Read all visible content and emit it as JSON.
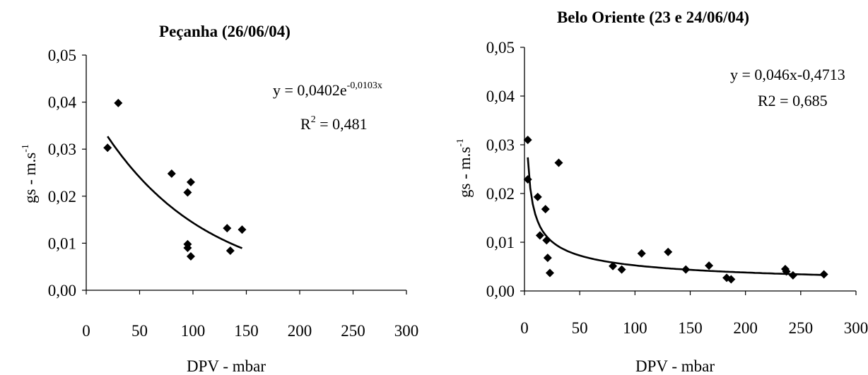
{
  "chart_data": [
    {
      "type": "scatter",
      "title": "Peçanha  (26/06/04)",
      "xlabel": "DPV -  mbar",
      "ylabel_main": "gs -  m.s",
      "ylabel_sup": "-1",
      "xlim": [
        0,
        300
      ],
      "ylim": [
        0,
        0.05
      ],
      "x_ticks": [
        "0",
        "50",
        "100",
        "150",
        "200",
        "250",
        "300"
      ],
      "y_ticks": [
        "0,00",
        "0,01",
        "0,02",
        "0,03",
        "0,04",
        "0,05"
      ],
      "equation_main": "y = 0,0402e",
      "equation_sup": "-0,0103x",
      "r2_main": "R",
      "r2_sup": "2",
      "r2_value": " = 0,481",
      "points": [
        {
          "x": 20,
          "y": 0.0303
        },
        {
          "x": 30,
          "y": 0.0398
        },
        {
          "x": 80,
          "y": 0.0248
        },
        {
          "x": 95,
          "y": 0.0208
        },
        {
          "x": 98,
          "y": 0.023
        },
        {
          "x": 95,
          "y": 0.0098
        },
        {
          "x": 95,
          "y": 0.009
        },
        {
          "x": 98,
          "y": 0.0072
        },
        {
          "x": 132,
          "y": 0.0132
        },
        {
          "x": 135,
          "y": 0.0084
        },
        {
          "x": 146,
          "y": 0.0129
        }
      ],
      "trend": {
        "type": "exponential",
        "a": 0.0402,
        "b": -0.0103,
        "x_from": 20,
        "x_to": 146
      }
    },
    {
      "type": "scatter",
      "title": "Belo Oriente (23 e 24/06/04)",
      "xlabel": "DPV -  mbar",
      "ylabel_main": "gs -  m.s",
      "ylabel_sup": "-1",
      "xlim": [
        0,
        300
      ],
      "ylim": [
        0,
        0.05
      ],
      "x_ticks": [
        "0",
        "50",
        "100",
        "150",
        "200",
        "250",
        "300"
      ],
      "y_ticks": [
        "0,00",
        "0,01",
        "0,02",
        "0,03",
        "0,04",
        "0,05"
      ],
      "equation_main": "y = 0,046x-0,4713",
      "r2_text": "R2 = 0,685",
      "points": [
        {
          "x": 3,
          "y": 0.031
        },
        {
          "x": 3,
          "y": 0.0229
        },
        {
          "x": 12,
          "y": 0.0193
        },
        {
          "x": 14,
          "y": 0.0114
        },
        {
          "x": 19,
          "y": 0.0168
        },
        {
          "x": 20,
          "y": 0.0104
        },
        {
          "x": 21,
          "y": 0.0068
        },
        {
          "x": 23,
          "y": 0.0037
        },
        {
          "x": 31,
          "y": 0.0263
        },
        {
          "x": 80,
          "y": 0.0051
        },
        {
          "x": 88,
          "y": 0.0044
        },
        {
          "x": 106,
          "y": 0.0077
        },
        {
          "x": 130,
          "y": 0.008
        },
        {
          "x": 146,
          "y": 0.0044
        },
        {
          "x": 167,
          "y": 0.0052
        },
        {
          "x": 183,
          "y": 0.0027
        },
        {
          "x": 187,
          "y": 0.0024
        },
        {
          "x": 236,
          "y": 0.0045
        },
        {
          "x": 237,
          "y": 0.004
        },
        {
          "x": 243,
          "y": 0.0032
        },
        {
          "x": 271,
          "y": 0.0034
        }
      ],
      "trend": {
        "type": "power",
        "a": 0.046,
        "b": -0.4713,
        "x_from": 3,
        "x_to": 271
      }
    }
  ]
}
